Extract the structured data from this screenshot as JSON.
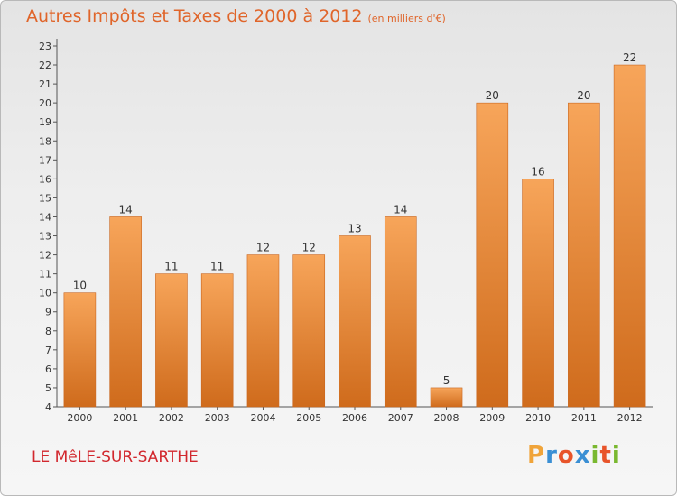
{
  "header": {
    "title": "Autres Impôts et Taxes de 2000 à 2012",
    "unit": "(en milliers d'€)"
  },
  "footer": {
    "commune": "LE MêLE-SUR-SARTHE",
    "brand_letters": [
      "P",
      "r",
      "o",
      "x",
      "i",
      "t",
      "i"
    ],
    "brand_colors": [
      "#f0a43a",
      "#3a8fd4",
      "#e8542a",
      "#3a8fd4",
      "#7ab830",
      "#e8542a",
      "#7ab830"
    ]
  },
  "chart_data": {
    "type": "bar",
    "categories": [
      "2000",
      "2001",
      "2002",
      "2003",
      "2004",
      "2005",
      "2006",
      "2007",
      "2008",
      "2009",
      "2010",
      "2011",
      "2012"
    ],
    "values": [
      10,
      14,
      11,
      11,
      12,
      12,
      13,
      14,
      5,
      20,
      16,
      20,
      22
    ],
    "title": "Autres Impôts et Taxes de 2000 à 2012",
    "xlabel": "",
    "ylabel": "",
    "ylim": [
      4,
      23
    ],
    "yticks": [
      4,
      5,
      6,
      7,
      8,
      9,
      10,
      11,
      12,
      13,
      14,
      15,
      16,
      17,
      18,
      19,
      20,
      21,
      22,
      23
    ],
    "grid": false,
    "bar_color_top": "#f7a55a",
    "bar_color_bottom": "#cf6b1c"
  }
}
